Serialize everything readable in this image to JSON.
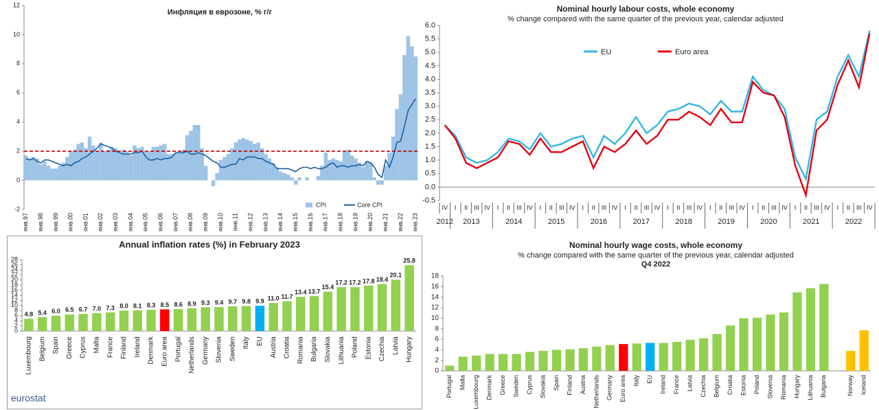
{
  "chart_data": [
    {
      "type": "combo",
      "title": "Инфляция в еврозоне, % г/г",
      "categories": [
        "янв.97",
        null,
        null,
        null,
        "янв.98",
        null,
        null,
        null,
        "янв.99",
        null,
        null,
        null,
        "янв.00",
        null,
        null,
        null,
        "янв.01",
        null,
        null,
        null,
        "янв.02",
        null,
        null,
        null,
        "янв.03",
        null,
        null,
        null,
        "янв.04",
        null,
        null,
        null,
        "янв.05",
        null,
        null,
        null,
        "янв.06",
        null,
        null,
        null,
        "янв.07",
        null,
        null,
        null,
        "янв.08",
        null,
        null,
        null,
        "янв.09",
        null,
        null,
        null,
        "янв.10",
        null,
        null,
        null,
        "янв.11",
        null,
        null,
        null,
        "янв.12",
        null,
        null,
        null,
        "янв.13",
        null,
        null,
        null,
        "янв.14",
        null,
        null,
        null,
        "янв.15",
        null,
        null,
        null,
        "янв.16",
        null,
        null,
        null,
        "янв.17",
        null,
        null,
        null,
        "янв.18",
        null,
        null,
        null,
        "янв.19",
        null,
        null,
        null,
        "янв.20",
        null,
        null,
        null,
        "янв.21",
        null,
        null,
        null,
        "янв.22",
        null,
        null,
        null,
        "янв.23"
      ],
      "series": [
        {
          "name": "CPI",
          "kind": "bar",
          "color": "#9dc3e6",
          "values": [
            1.7,
            1.5,
            1.6,
            1.5,
            1.1,
            1.3,
            1.0,
            0.8,
            0.8,
            1.0,
            1.2,
            1.6,
            2.0,
            2.1,
            2.5,
            2.6,
            2.2,
            3.0,
            2.4,
            2.0,
            2.6,
            2.0,
            2.1,
            2.3,
            2.2,
            1.9,
            2.1,
            2.0,
            1.7,
            2.4,
            2.2,
            2.3,
            2.0,
            2.0,
            2.3,
            2.3,
            2.4,
            2.5,
            1.8,
            1.8,
            1.9,
            1.9,
            2.1,
            3.1,
            3.4,
            3.8,
            3.8,
            2.2,
            1.0,
            0.0,
            -0.4,
            0.5,
            1.4,
            1.6,
            1.8,
            2.2,
            2.6,
            2.8,
            2.9,
            2.8,
            2.7,
            2.5,
            2.6,
            2.2,
            1.8,
            1.5,
            1.2,
            0.9,
            0.6,
            0.5,
            0.4,
            0.2,
            -0.3,
            0.2,
            0.0,
            0.2,
            0.0,
            0.0,
            0.3,
            1.0,
            1.9,
            1.4,
            1.5,
            1.4,
            1.3,
            2.0,
            2.1,
            1.7,
            1.5,
            1.2,
            0.9,
            1.3,
            1.2,
            0.2,
            -0.3,
            -0.3,
            1.0,
            1.9,
            3.0,
            4.9,
            5.9,
            8.6,
            9.9,
            9.2,
            8.5
          ]
        },
        {
          "name": "Core CPI",
          "kind": "line",
          "color": "#1f5f9f",
          "values": [
            1.5,
            1.4,
            1.5,
            1.3,
            1.2,
            1.4,
            1.4,
            1.3,
            1.2,
            1.1,
            1.0,
            1.1,
            1.0,
            1.2,
            1.3,
            1.5,
            1.6,
            1.8,
            2.0,
            2.2,
            2.5,
            2.4,
            2.3,
            2.2,
            2.0,
            1.9,
            1.8,
            1.8,
            1.8,
            1.9,
            1.9,
            2.0,
            1.6,
            1.4,
            1.4,
            1.5,
            1.4,
            1.5,
            1.5,
            1.6,
            1.9,
            1.9,
            1.9,
            2.0,
            1.8,
            1.8,
            1.9,
            1.8,
            1.7,
            1.5,
            1.3,
            1.2,
            0.9,
            0.9,
            1.0,
            1.1,
            1.1,
            1.5,
            1.4,
            1.6,
            1.6,
            1.6,
            1.5,
            1.5,
            1.3,
            1.2,
            1.1,
            0.8,
            0.8,
            0.8,
            0.8,
            0.7,
            0.6,
            0.8,
            0.9,
            0.9,
            0.8,
            0.9,
            0.8,
            0.8,
            0.9,
            1.1,
            1.2,
            0.9,
            1.0,
            1.0,
            0.9,
            1.0,
            1.0,
            1.1,
            1.0,
            1.3,
            1.2,
            0.9,
            0.4,
            0.2,
            1.4,
            0.9,
            1.6,
            2.6,
            2.7,
            3.7,
            4.8,
            5.2,
            5.6
          ]
        }
      ],
      "reference_line": 2,
      "reference_color": "#c00000",
      "ylim": [
        -2,
        12
      ],
      "yticks": [
        -2,
        0,
        2,
        4,
        6,
        8,
        10,
        12
      ],
      "grid": false
    },
    {
      "type": "line",
      "title": "Nominal hourly labour costs, whole economy",
      "subtitle": "% change compared with the same quarter of the previous year, calendar adjusted",
      "categories": [
        "IV",
        "I",
        "II",
        "III",
        "IV",
        "I",
        "II",
        "III",
        "IV",
        "I",
        "II",
        "III",
        "IV",
        "I",
        "II",
        "III",
        "IV",
        "I",
        "II",
        "III",
        "IV",
        "I",
        "II",
        "III",
        "IV",
        "I",
        "II",
        "III",
        "IV",
        "I",
        "II",
        "III",
        "IV",
        "I",
        "II",
        "III",
        "IV",
        "I",
        "II",
        "III",
        "IV"
      ],
      "year_labels": [
        "2012",
        "2013",
        "2014",
        "2015",
        "2016",
        "2017",
        "2018",
        "2019",
        "2020",
        "2021",
        "2022"
      ],
      "series": [
        {
          "name": "EU",
          "color": "#33b5e5",
          "values": [
            2.3,
            1.9,
            1.1,
            0.9,
            1.0,
            1.3,
            1.8,
            1.7,
            1.4,
            2.0,
            1.5,
            1.6,
            1.8,
            1.9,
            1.1,
            1.9,
            1.6,
            2.0,
            2.6,
            2.0,
            2.3,
            2.8,
            2.9,
            3.1,
            3.0,
            2.7,
            3.2,
            2.8,
            2.8,
            4.1,
            3.6,
            3.4,
            2.9,
            1.1,
            0.3,
            2.5,
            2.8,
            4.1,
            4.9,
            4.1,
            5.8
          ]
        },
        {
          "name": "Euro area",
          "color": "#e3000f",
          "values": [
            2.3,
            1.8,
            0.9,
            0.7,
            0.9,
            1.1,
            1.7,
            1.6,
            1.2,
            1.8,
            1.3,
            1.3,
            1.5,
            1.7,
            0.7,
            1.5,
            1.3,
            1.6,
            2.1,
            1.6,
            1.9,
            2.5,
            2.5,
            2.8,
            2.6,
            2.3,
            2.9,
            2.4,
            2.4,
            3.9,
            3.5,
            3.4,
            2.6,
            0.8,
            -0.3,
            2.1,
            2.5,
            3.8,
            4.7,
            3.7,
            5.7
          ]
        }
      ],
      "ylim": [
        -0.5,
        6.0
      ],
      "yticks": [
        -0.5,
        {
          "value": 0,
          "label": "0.0"
        },
        0.5,
        {
          "value": 1,
          "label": "1.0"
        },
        1.5,
        {
          "value": 2,
          "label": "2.0"
        },
        2.5,
        {
          "value": 3,
          "label": "3.0"
        },
        3.5,
        {
          "value": 4,
          "label": "4.0"
        },
        4.5,
        {
          "value": 5,
          "label": "5.0"
        },
        5.5,
        {
          "value": 6,
          "label": "6.0"
        }
      ],
      "grid": false
    },
    {
      "type": "bar",
      "title": "Annual inflation rates (%) in February 2023",
      "source": "eurostat",
      "categories": [
        "Luxembourg",
        "Belgium",
        "Spain",
        "Greece",
        "Cyprus",
        "Malta",
        "France",
        "Finland",
        "Ireland",
        "Denmark",
        "Euro area",
        "Portugal",
        "Netherlands",
        "Germany",
        "Slovenia",
        "Sweden",
        "Italy",
        "EU",
        "Austria",
        "Croatia",
        "Romania",
        "Bulgaria",
        "Slovakia",
        "Lithuania",
        "Poland",
        "Estonia",
        "Czechia",
        "Latvia",
        "Hungary"
      ],
      "values": [
        4.8,
        5.4,
        6.0,
        6.5,
        6.7,
        7.0,
        7.3,
        8.0,
        8.1,
        8.3,
        8.5,
        8.6,
        8.9,
        9.3,
        9.4,
        9.7,
        9.8,
        9.9,
        11.0,
        11.7,
        13.4,
        13.7,
        15.4,
        17.2,
        17.2,
        17.8,
        18.4,
        20.1,
        25.8
      ],
      "value_labels": [
        "4.8",
        "5.4",
        "6.0",
        "6.5",
        "6.7",
        "7.0",
        "7.3",
        "8.0",
        "8.1",
        "8.3",
        "8.5",
        "8.6",
        "8.9",
        "9.3",
        "9.4",
        "9.7",
        "9.8",
        "9.9",
        "11.0",
        "11.7",
        "13.4",
        "13.7",
        "15.4",
        "17.2",
        "17.2",
        "17.8",
        "18.4",
        "20.1",
        "25.8"
      ],
      "colors": [
        "#92d050",
        "#92d050",
        "#92d050",
        "#92d050",
        "#92d050",
        "#92d050",
        "#92d050",
        "#92d050",
        "#92d050",
        "#92d050",
        "#ff0000",
        "#92d050",
        "#92d050",
        "#92d050",
        "#92d050",
        "#92d050",
        "#92d050",
        "#00b0f0",
        "#92d050",
        "#92d050",
        "#92d050",
        "#92d050",
        "#92d050",
        "#92d050",
        "#92d050",
        "#92d050",
        "#92d050",
        "#92d050",
        "#92d050"
      ],
      "ylim": [
        0,
        28
      ],
      "yticks": [
        0,
        2,
        4,
        6,
        8,
        10,
        12,
        14,
        16,
        18,
        20,
        22,
        24,
        26,
        28
      ],
      "grid": false
    },
    {
      "type": "bar",
      "title": "Nominal hourly wage costs, whole economy",
      "subtitle": "% change compared with the same quarter of the previous year, calendar adjusted",
      "period": "Q4 2022",
      "categories": [
        "Portugal",
        "Malta",
        "Luxembourg",
        "Denmark",
        "Greece",
        "Sweden",
        "Cyprus",
        "Slovakia",
        "Spain",
        "Finland",
        "Austria",
        "Netherlands",
        "Germany",
        "Euro area",
        "Italy",
        "EU",
        "Ireland",
        "France",
        "Latvia",
        "Czechia",
        "Belgium",
        "Croatia",
        "Estonia",
        "Poland",
        "Slovenia",
        "Romania",
        "Hungary",
        "Lithuania",
        "Bulgaria",
        null,
        "Norway",
        "Iceland"
      ],
      "values": [
        1.0,
        2.7,
        2.9,
        3.2,
        3.2,
        3.2,
        3.6,
        3.8,
        4.0,
        4.1,
        4.3,
        4.6,
        4.9,
        5.1,
        5.2,
        5.3,
        5.3,
        5.5,
        5.9,
        6.2,
        7.0,
        8.6,
        10.0,
        10.1,
        10.7,
        11.1,
        14.9,
        15.7,
        16.5,
        null,
        3.8,
        7.7
      ],
      "colors": [
        "#92d050",
        "#92d050",
        "#92d050",
        "#92d050",
        "#92d050",
        "#92d050",
        "#92d050",
        "#92d050",
        "#92d050",
        "#92d050",
        "#92d050",
        "#92d050",
        "#92d050",
        "#ff0000",
        "#92d050",
        "#00b0f0",
        "#92d050",
        "#92d050",
        "#92d050",
        "#92d050",
        "#92d050",
        "#92d050",
        "#92d050",
        "#92d050",
        "#92d050",
        "#92d050",
        "#92d050",
        "#92d050",
        "#92d050",
        null,
        "#ffc000",
        "#ffc000"
      ],
      "ylim": [
        0,
        18
      ],
      "yticks": [
        0,
        2,
        4,
        6,
        8,
        10,
        12,
        14,
        16,
        18
      ],
      "grid": false
    }
  ]
}
